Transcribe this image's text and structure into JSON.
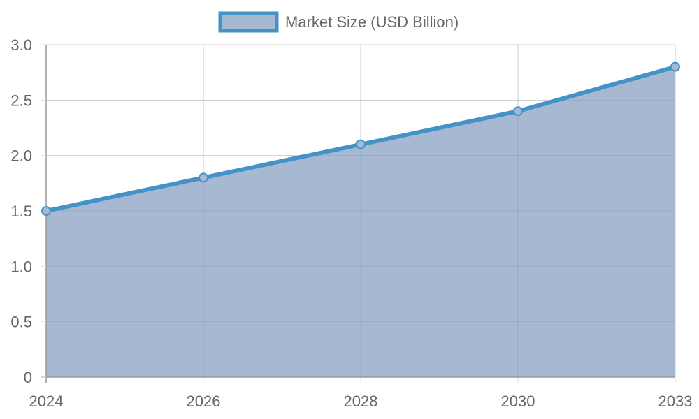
{
  "colors": {
    "line": "#4393c8",
    "fill": "#a7b9d2",
    "grid": "#e0e0e0",
    "axis": "#999999",
    "text": "#666666"
  },
  "chart_data": {
    "type": "area",
    "x": [
      "2024",
      "2026",
      "2028",
      "2030",
      "2033"
    ],
    "series": [
      {
        "name": "Market Size (USD Billion)",
        "values": [
          1.5,
          1.8,
          2.1,
          2.4,
          2.8
        ]
      }
    ],
    "ylim": [
      0,
      3.0
    ],
    "yticks": [
      "0",
      "0.5",
      "1.0",
      "1.5",
      "2.0",
      "2.5",
      "3.0"
    ],
    "grid": true,
    "legend": "top-center"
  }
}
